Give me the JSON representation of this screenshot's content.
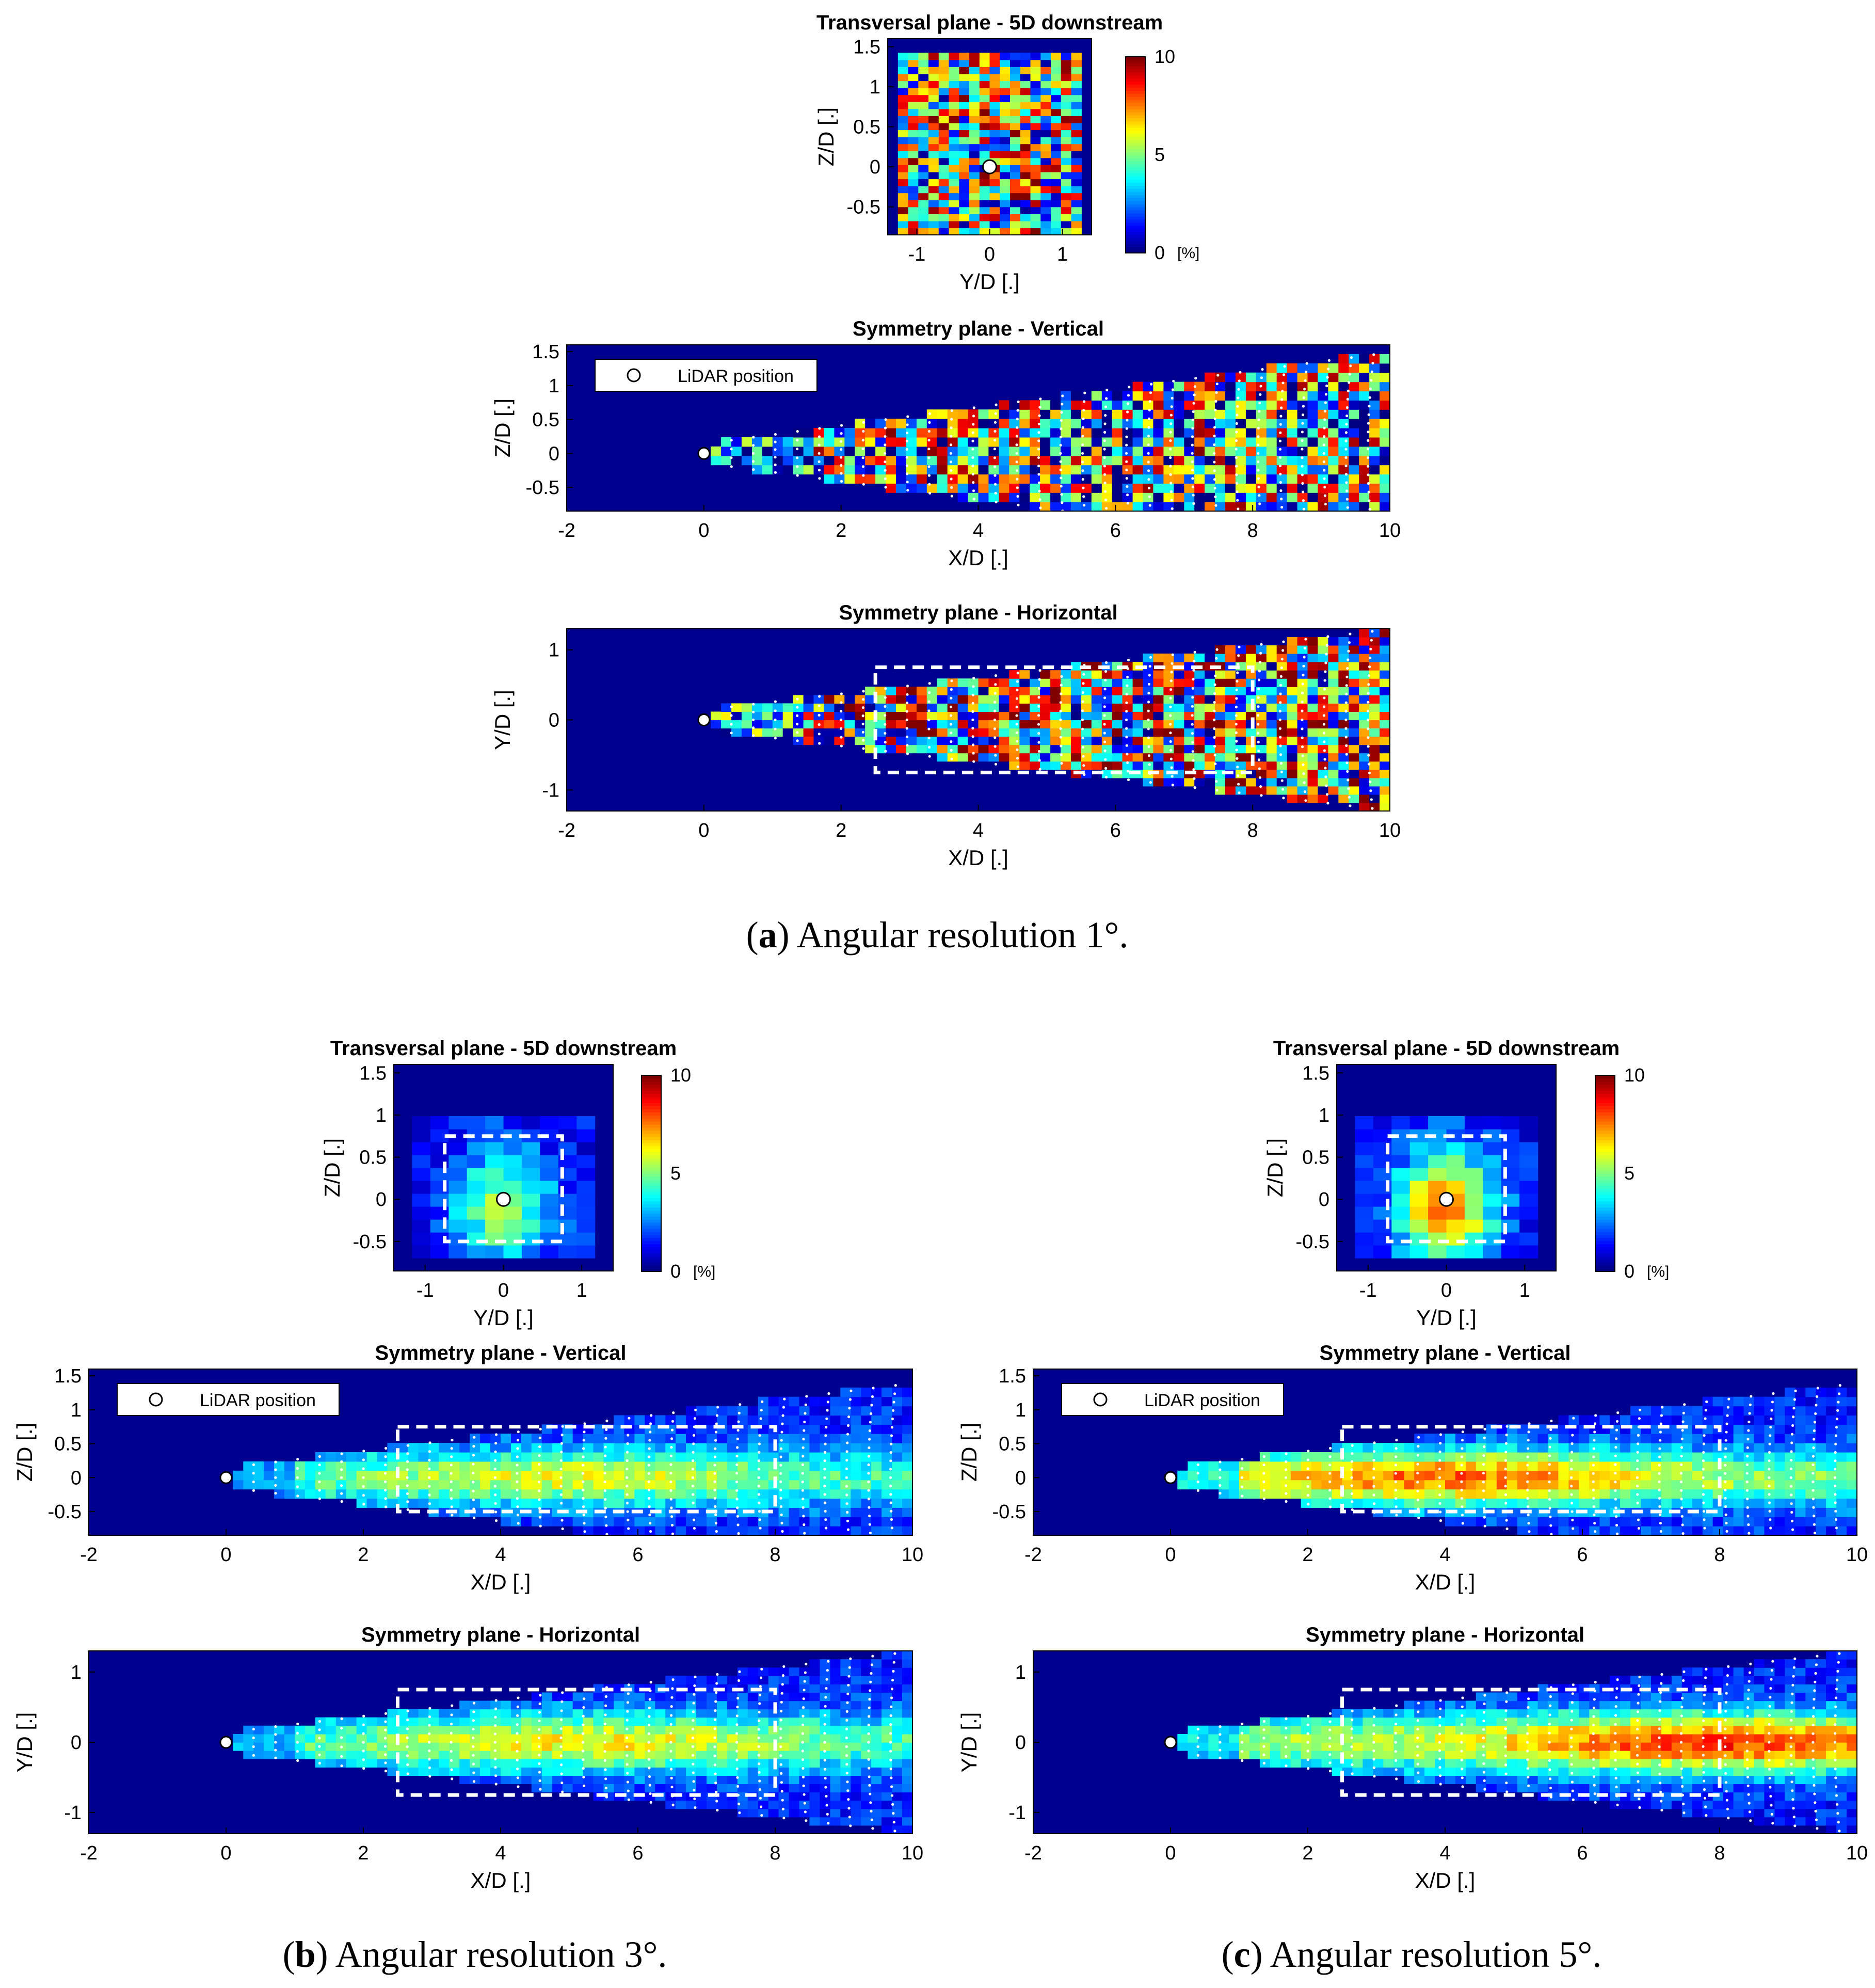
{
  "colors": {
    "background": "#00008f",
    "measure_dot": "#ffffff",
    "box": "#ffffff"
  },
  "colormap": "jet",
  "colorbar": {
    "ticks": [
      0,
      5,
      10
    ],
    "unit_label": "[%]",
    "range": [
      0,
      10
    ]
  },
  "legend": {
    "label": "LiDAR position",
    "placement": "top-left"
  },
  "captions": {
    "a": {
      "letter": "a",
      "text": " Angular resolution 1°."
    },
    "b": {
      "letter": "b",
      "text": " Angular resolution 3°."
    },
    "c": {
      "letter": "c",
      "text": " Angular resolution 5°."
    }
  },
  "chart_data": [
    {
      "id": "a-transversal",
      "figure": "a",
      "type": "heatmap",
      "title": "Transversal plane - 5D downstream",
      "xlabel": "Y/D [.]",
      "ylabel": "Z/D [.]",
      "xlim": [
        -1.4,
        1.4
      ],
      "ylim": [
        -0.85,
        1.6
      ],
      "xticks": [
        "-1",
        "0",
        "1"
      ],
      "yticks": [
        "-0.5",
        "0",
        "0.5",
        "1",
        "1.5"
      ],
      "grid_cells": [
        20,
        28
      ],
      "noise_level": 5.2,
      "colorbar": true,
      "lidar": [
        0,
        0
      ],
      "box": null
    },
    {
      "id": "a-vertical",
      "figure": "a",
      "type": "heatmap",
      "title": "Symmetry plane - Vertical",
      "xlabel": "X/D [.]",
      "ylabel": "Z/D [.]",
      "xlim": [
        -2,
        10
      ],
      "ylim": [
        -0.85,
        1.6
      ],
      "xticks": [
        "-2",
        "0",
        "2",
        "4",
        "6",
        "8",
        "10"
      ],
      "yticks": [
        "-0.5",
        "0",
        "0.5",
        "1",
        "1.5"
      ],
      "cone_half_width": [
        0.14,
        1.5
      ],
      "mean_level": 4.5,
      "noise_level": 5.5,
      "legend": true,
      "lidar": [
        0,
        0
      ],
      "box": null
    },
    {
      "id": "a-horizontal",
      "figure": "a",
      "type": "heatmap",
      "title": "Symmetry plane - Horizontal",
      "xlabel": "X/D [.]",
      "ylabel": "Y/D [.]",
      "xlim": [
        -2,
        10
      ],
      "ylim": [
        -1.3,
        1.3
      ],
      "xticks": [
        "-2",
        "0",
        "2",
        "4",
        "6",
        "8",
        "10"
      ],
      "yticks": [
        "-1",
        "0",
        "1"
      ],
      "cone_half_width": [
        0.14,
        1.3
      ],
      "mean_level": 5.5,
      "noise_level": 5.5,
      "lidar": [
        0,
        0
      ],
      "box": [
        2.5,
        8,
        -0.75,
        0.75
      ]
    },
    {
      "id": "b-transversal",
      "figure": "b",
      "type": "heatmap",
      "title": "Transversal plane - 5D downstream",
      "xlabel": "Y/D [.]",
      "ylabel": "Z/D [.]",
      "xlim": [
        -1.4,
        1.4
      ],
      "ylim": [
        -0.85,
        1.6
      ],
      "xticks": [
        "-1",
        "0",
        "1"
      ],
      "yticks": [
        "-0.5",
        "0",
        "0.5",
        "1",
        "1.5"
      ],
      "grid_cells": [
        12,
        16
      ],
      "peak_level": 4.2,
      "colorbar": true,
      "lidar": [
        0,
        0
      ],
      "box": [
        -0.75,
        0.75,
        -0.5,
        0.75
      ]
    },
    {
      "id": "b-vertical",
      "figure": "b",
      "type": "heatmap",
      "title": "Symmetry plane - Vertical",
      "xlabel": "X/D [.]",
      "ylabel": "Z/D [.]",
      "xlim": [
        -2,
        10
      ],
      "ylim": [
        -0.85,
        1.6
      ],
      "xticks": [
        "-2",
        "0",
        "2",
        "4",
        "6",
        "8",
        "10"
      ],
      "yticks": [
        "-0.5",
        "0",
        "0.5",
        "1",
        "1.5"
      ],
      "cone_half_width": [
        0.14,
        1.4
      ],
      "peak_level": 4.5,
      "peak_x": 5,
      "legend": true,
      "lidar": [
        0,
        0
      ],
      "box": [
        2.5,
        8,
        -0.5,
        0.75
      ]
    },
    {
      "id": "b-horizontal",
      "figure": "b",
      "type": "heatmap",
      "title": "Symmetry plane - Horizontal",
      "xlabel": "X/D [.]",
      "ylabel": "Y/D [.]",
      "xlim": [
        -2,
        10
      ],
      "ylim": [
        -1.3,
        1.3
      ],
      "xticks": [
        "-2",
        "0",
        "2",
        "4",
        "6",
        "8",
        "10"
      ],
      "yticks": [
        "-1",
        "0",
        "1"
      ],
      "cone_half_width": [
        0.14,
        1.3
      ],
      "peak_level": 4.8,
      "peak_x": 5.3,
      "lidar": [
        0,
        0
      ],
      "box": [
        2.5,
        8,
        -0.75,
        0.75
      ]
    },
    {
      "id": "c-transversal",
      "figure": "c",
      "type": "heatmap",
      "title": "Transversal plane - 5D downstream",
      "xlabel": "Y/D [.]",
      "ylabel": "Z/D [.]",
      "xlim": [
        -1.4,
        1.4
      ],
      "ylim": [
        -0.85,
        1.6
      ],
      "xticks": [
        "-1",
        "0",
        "1"
      ],
      "yticks": [
        "-0.5",
        "0",
        "0.5",
        "1",
        "1.5"
      ],
      "grid_cells": [
        12,
        16
      ],
      "peak_level": 6.5,
      "colorbar": true,
      "lidar": [
        0,
        0
      ],
      "box": [
        -0.75,
        0.75,
        -0.5,
        0.75
      ]
    },
    {
      "id": "c-vertical",
      "figure": "c",
      "type": "heatmap",
      "title": "Symmetry plane - Vertical",
      "xlabel": "X/D [.]",
      "ylabel": "Z/D [.]",
      "xlim": [
        -2,
        10
      ],
      "ylim": [
        -0.85,
        1.6
      ],
      "xticks": [
        "-2",
        "0",
        "2",
        "4",
        "6",
        "8",
        "10"
      ],
      "yticks": [
        "-0.5",
        "0",
        "0.5",
        "1",
        "1.5"
      ],
      "cone_half_width": [
        0.14,
        1.4
      ],
      "peak_level": 6.2,
      "peak_x": 4,
      "legend": true,
      "lidar": [
        0,
        0
      ],
      "box": [
        2.5,
        8,
        -0.5,
        0.75
      ]
    },
    {
      "id": "c-horizontal",
      "figure": "c",
      "type": "heatmap",
      "title": "Symmetry plane - Horizontal",
      "xlabel": "X/D [.]",
      "ylabel": "Y/D [.]",
      "xlim": [
        -2,
        10
      ],
      "ylim": [
        -1.3,
        1.3
      ],
      "xticks": [
        "-2",
        "0",
        "2",
        "4",
        "6",
        "8",
        "10"
      ],
      "yticks": [
        "-1",
        "0",
        "1"
      ],
      "cone_half_width": [
        0.14,
        1.3
      ],
      "peak_level": 6.8,
      "peak_x": 8,
      "lidar": [
        0,
        0
      ],
      "box": [
        2.5,
        8,
        -0.75,
        0.75
      ]
    }
  ]
}
